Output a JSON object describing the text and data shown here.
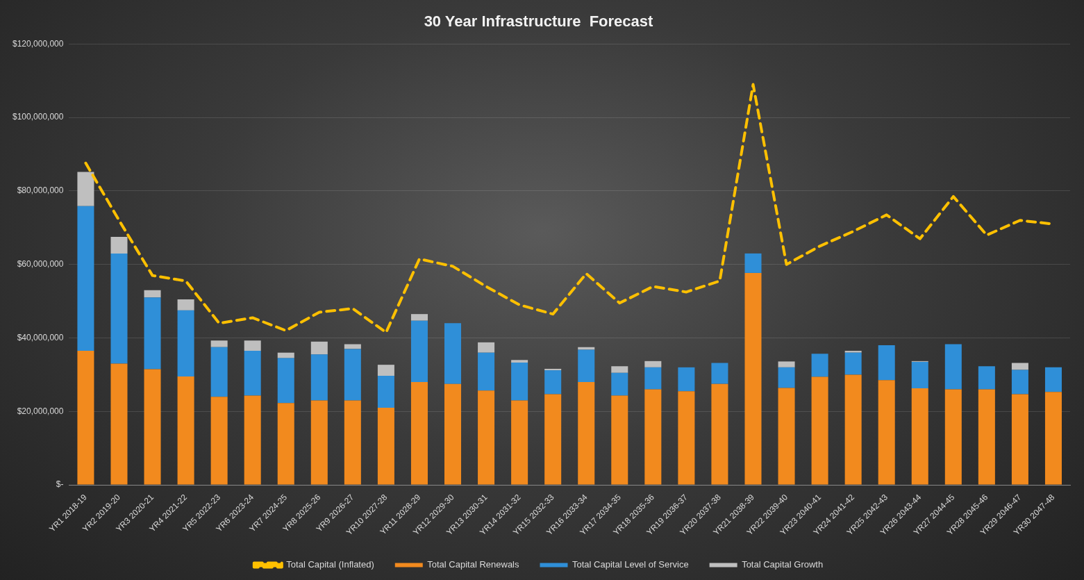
{
  "chart_data": {
    "type": "bar",
    "title": "30 Year Infrastructure  Forecast",
    "stacked": true,
    "grid": "y",
    "legend": "bottom",
    "categories": [
      "YR1 2018-19",
      "YR2 2019-20",
      "YR3 2020-21",
      "YR4 2021-22",
      "YR5 2022-23",
      "YR6 2023-24",
      "YR7 2024-25",
      "YR8 2025-26",
      "YR9 2026-27",
      "YR10 2027-28",
      "YR11 2028-29",
      "YR12 2029-30",
      "YR13 2030-31",
      "YR14 2031-32",
      "YR15 2032-33",
      "YR16 2033-34",
      "YR17 2034-35",
      "YR18 2035-36",
      "YR19 2036-37",
      "YR20 2037-38",
      "YR21 2038-39",
      "YR22 2039-40",
      "YR23 2040-41",
      "YR24 2041-42",
      "YR25 2042-43",
      "YR26 2043-44",
      "YR27 2044-45",
      "YR28 2045-46",
      "YR29 2046-47",
      "YR30 2047-48"
    ],
    "ylim": [
      0,
      120000000
    ],
    "yticks": [
      {
        "value": 0,
        "label": "$-"
      },
      {
        "value": 20000000,
        "label": "$20,000,000"
      },
      {
        "value": 40000000,
        "label": "$40,000,000"
      },
      {
        "value": 60000000,
        "label": "$60,000,000"
      },
      {
        "value": 80000000,
        "label": "$80,000,000"
      },
      {
        "value": 100000000,
        "label": "$100,000,000"
      },
      {
        "value": 120000000,
        "label": "$120,000,000"
      }
    ],
    "series": [
      {
        "name": "Total Capital Renewals",
        "color": "#f28a1e",
        "values": [
          36500000,
          33000000,
          31500000,
          29500000,
          24000000,
          24300000,
          22300000,
          23000000,
          23000000,
          21000000,
          28000000,
          27500000,
          25700000,
          23000000,
          24700000,
          28000000,
          24300000,
          26000000,
          25500000,
          27500000,
          57700000,
          26400000,
          29400000,
          30000000,
          28500000,
          26300000,
          26000000,
          26000000,
          24700000,
          25300000
        ]
      },
      {
        "name": "Total Capital Level of Service",
        "color": "#2f8fd8",
        "values": [
          39400000,
          30000000,
          19500000,
          18000000,
          13500000,
          12200000,
          12200000,
          12500000,
          14000000,
          8700000,
          16700000,
          16500000,
          10300000,
          10300000,
          6500000,
          8800000,
          6200000,
          6000000,
          6500000,
          5700000,
          5300000,
          5600000,
          6300000,
          6000000,
          9500000,
          7200000,
          12300000,
          6300000,
          6600000,
          6700000
        ]
      },
      {
        "name": "Total Capital Growth",
        "color": "#bfbfbf",
        "values": [
          9300000,
          4500000,
          2000000,
          3000000,
          1800000,
          2800000,
          1500000,
          3500000,
          1300000,
          3000000,
          1800000,
          0,
          2800000,
          700000,
          400000,
          700000,
          1800000,
          1700000,
          0,
          0,
          0,
          1600000,
          0,
          500000,
          0,
          200000,
          0,
          0,
          1900000,
          0
        ]
      },
      {
        "name": "Total Capital (Inflated)",
        "type": "line",
        "color": "#ffc000",
        "line_style": "dashed",
        "marker": "none",
        "values": [
          87600000,
          72000000,
          57000000,
          55500000,
          44000000,
          45500000,
          42000000,
          47000000,
          48000000,
          41500000,
          61500000,
          59500000,
          54000000,
          49000000,
          46500000,
          57500000,
          49500000,
          54000000,
          52500000,
          55500000,
          109000000,
          60000000,
          65000000,
          69000000,
          73500000,
          67000000,
          78500000,
          68000000,
          72000000,
          71000000
        ]
      }
    ]
  }
}
